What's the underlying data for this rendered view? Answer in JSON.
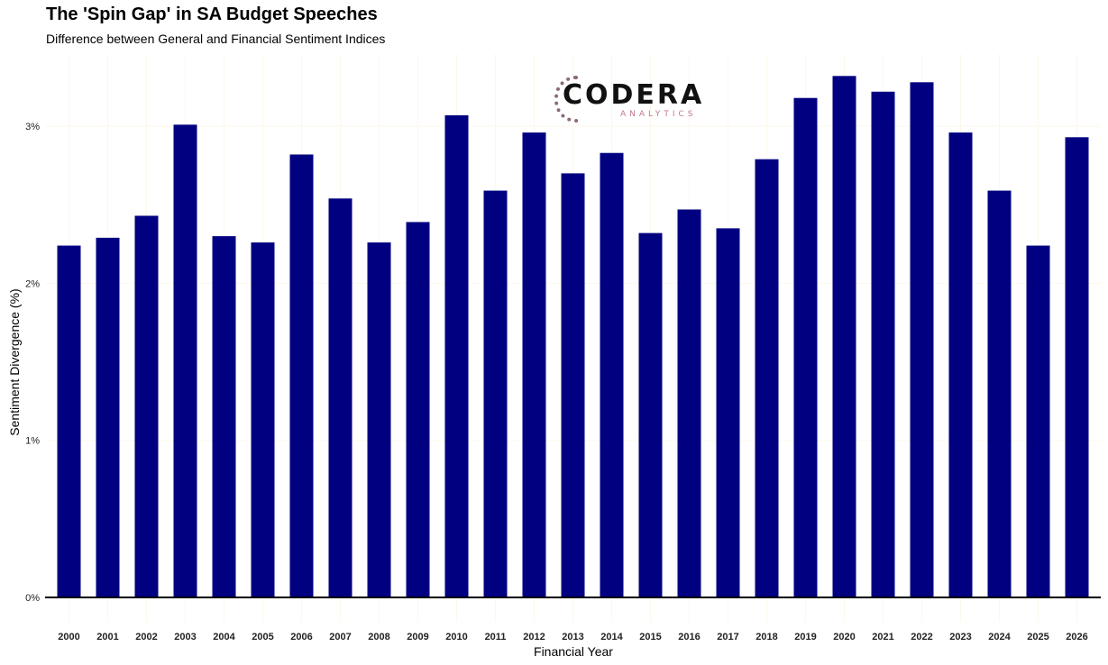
{
  "chart_data": {
    "type": "bar",
    "title": "The 'Spin Gap' in SA Budget Speeches",
    "subtitle": "Difference between General and Financial Sentiment Indices",
    "xlabel": "Financial Year",
    "ylabel": "Sentiment Divergence (%)",
    "ylim": [
      0,
      3.4
    ],
    "yticks": [
      0,
      1,
      2,
      3
    ],
    "ytick_labels": [
      "0%",
      "1%",
      "2%",
      "3%"
    ],
    "grid": true,
    "bar_color": "#000080",
    "categories": [
      "2000",
      "2001",
      "2002",
      "2003",
      "2004",
      "2005",
      "2006",
      "2007",
      "2008",
      "2009",
      "2010",
      "2011",
      "2012",
      "2013",
      "2014",
      "2015",
      "2016",
      "2017",
      "2018",
      "2019",
      "2020",
      "2021",
      "2022",
      "2023",
      "2024",
      "2025",
      "2026"
    ],
    "values": [
      2.24,
      2.29,
      2.43,
      3.01,
      2.3,
      2.26,
      2.82,
      2.54,
      2.26,
      2.39,
      3.07,
      2.59,
      2.96,
      2.7,
      2.83,
      2.32,
      2.47,
      2.35,
      2.79,
      3.18,
      3.32,
      3.22,
      3.28,
      2.96,
      2.59,
      2.24,
      2.93
    ]
  },
  "logo": {
    "name": "CODERA",
    "tagline": "ANALYTICS"
  }
}
